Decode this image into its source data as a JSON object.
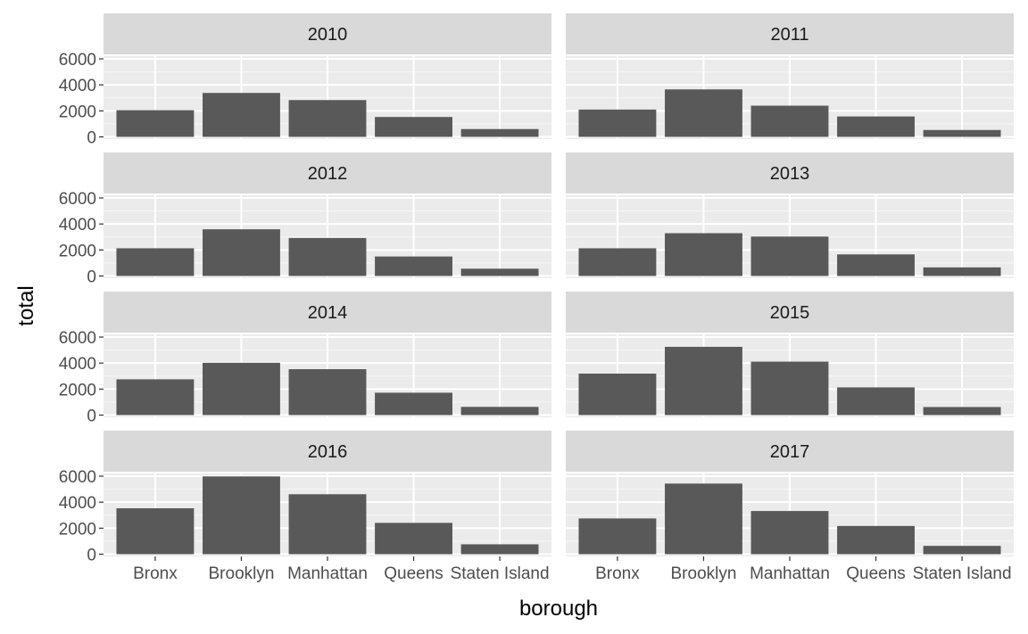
{
  "chart_data": {
    "type": "bar",
    "layout": "facet_wrap",
    "ncol": 2,
    "xlabel": "borough",
    "ylabel": "total",
    "categories": [
      "Bronx",
      "Brooklyn",
      "Manhattan",
      "Queens",
      "Staten Island"
    ],
    "yticks": [
      0,
      2000,
      4000,
      6000
    ],
    "ylim": [
      0,
      6000
    ],
    "grid": true,
    "panels": [
      {
        "label": "2010",
        "values": [
          2050,
          3380,
          2830,
          1530,
          600
        ]
      },
      {
        "label": "2011",
        "values": [
          2100,
          3650,
          2400,
          1570,
          530
        ]
      },
      {
        "label": "2012",
        "values": [
          2130,
          3590,
          2920,
          1500,
          560
        ]
      },
      {
        "label": "2013",
        "values": [
          2130,
          3290,
          3030,
          1660,
          660
        ]
      },
      {
        "label": "2014",
        "values": [
          2750,
          4020,
          3530,
          1720,
          630
        ]
      },
      {
        "label": "2015",
        "values": [
          3190,
          5250,
          4110,
          2130,
          620
        ]
      },
      {
        "label": "2016",
        "values": [
          3530,
          5980,
          4610,
          2410,
          760
        ]
      },
      {
        "label": "2017",
        "values": [
          2750,
          5430,
          3320,
          2170,
          640
        ]
      }
    ]
  }
}
